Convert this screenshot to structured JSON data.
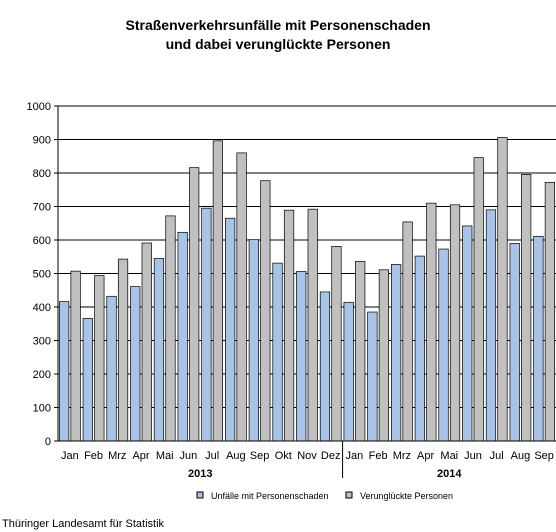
{
  "chart_data": {
    "type": "bar",
    "title_line1": "Straßenverkehrsunfälle mit Personenschaden",
    "title_line2": "und dabei verunglückte Personen",
    "ylim": [
      0,
      1000
    ],
    "yticks": [
      "0",
      "100",
      "200",
      "300",
      "400",
      "500",
      "600",
      "700",
      "800",
      "900",
      "1000"
    ],
    "grid": true,
    "legend_position": "bottom",
    "categories": [
      "Jan",
      "Feb",
      "Mrz",
      "Apr",
      "Mai",
      "Jun",
      "Jul",
      "Aug",
      "Sep",
      "Okt",
      "Nov",
      "Dez",
      "Jan",
      "Feb",
      "Mrz",
      "Apr",
      "Mai",
      "Jun",
      "Jul",
      "Aug",
      "Sep"
    ],
    "years": [
      {
        "label": "2013",
        "count": 12
      },
      {
        "label": "2014",
        "count": 9
      }
    ],
    "series": [
      {
        "name": "Unfälle mit Personenschaden",
        "color": "#a9c3e6",
        "values": [
          416,
          366,
          432,
          461,
          545,
          623,
          695,
          665,
          601,
          531,
          506,
          445,
          414,
          385,
          527,
          552,
          573,
          642,
          690,
          590,
          611
        ]
      },
      {
        "name": "Verunglückte Personen",
        "color": "#c0c0c0",
        "values": [
          507,
          494,
          543,
          591,
          672,
          816,
          896,
          860,
          777,
          689,
          692,
          581,
          536,
          511,
          654,
          710,
          705,
          846,
          906,
          796,
          772
        ]
      }
    ]
  },
  "footer": {
    "source": "Thüringer Landesamt für Statistik"
  }
}
